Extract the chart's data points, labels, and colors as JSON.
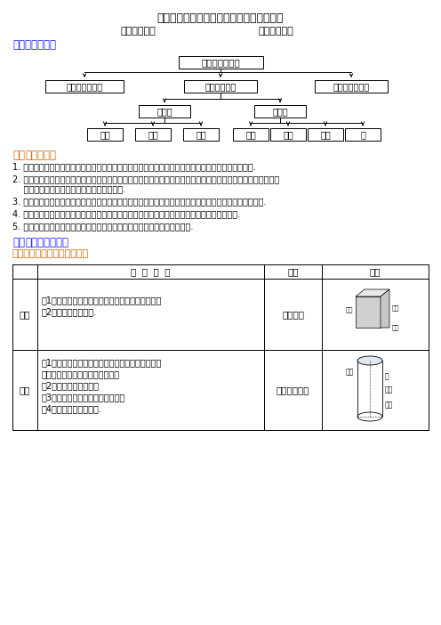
{
  "title": "数学高考总复习：立几结构、三视图、体积",
  "editor_line_left": "编稿：林景飞",
  "editor_line_right": "责编：严章梅",
  "section1_title": "一、知识网络：",
  "section2_title_num": "二、",
  "section2_title_rest": "高考考点：",
  "section3_title_num": "三、",
  "section3_title_rest": "知识要点梳理：",
  "section3_sub": "知识点一：空间几何体的结构",
  "flowchart_root": "简单的空间图形",
  "flowchart_level1": [
    "三视图、直观图",
    "几何体的结构",
    "面积、体积公式"
  ],
  "flowchart_level2": [
    "多面体",
    "旋转体"
  ],
  "flowchart_level3_left": [
    "棱柱",
    "棱锥",
    "棱台"
  ],
  "flowchart_level3_right": [
    "圆柱",
    "圆锥",
    "圆台",
    "球"
  ],
  "exam_points": [
    "1. 认识柱、锥、台、球及其简单组合体的结构特征，并能运用这些特征描述现实生活中简单物体的结构.",
    "2. 能画出简单空间图形（长方体、球、圆柱、圆锥、棱柱等的简易组合）的三视图，能识别上述的三视图所表示的立体模型，会用斜二测法画出它们的直观图.",
    "3. 会用平行投影与中心投影两种方法，画出简单空间图形的三视图与直观图，了解空间图形的不同表示形式.",
    "4. 会画某些建筑物的视图与直观图（在不影响图形特征的基础上，尺寸、线条等不作严格要求）.",
    "5. 了解球、棱柱、棱锥、台的表面积和体积的计算公式（不要求记忆公式）."
  ],
  "table_headers": [
    "",
    "结  构  特  征",
    "物例",
    "图例"
  ],
  "table_row1_name": "棱柱",
  "table_row1_lines": [
    "（1）两底面相互平行，其余各面都是平行四边形；",
    "（2）侧棱平行且相等."
  ],
  "table_row1_example": "六角螺帽",
  "table_row2_name": "圆柱",
  "table_row2_lines": [
    "（1）是以矩形的一边所在直线为旋转轴，其余三边",
    "旋转形成的曲面所围成的几何体；",
    "（2）两底面相互平行；",
    "（3）侧面的母线平行于圆柱的轴；",
    "（4）侧面展开图是矩形."
  ],
  "table_row2_example": "大厅的圆形柱",
  "bg_color": "#ffffff",
  "blue_color": "#1a1aff",
  "orange_color": "#cc6600",
  "black": "#000000"
}
